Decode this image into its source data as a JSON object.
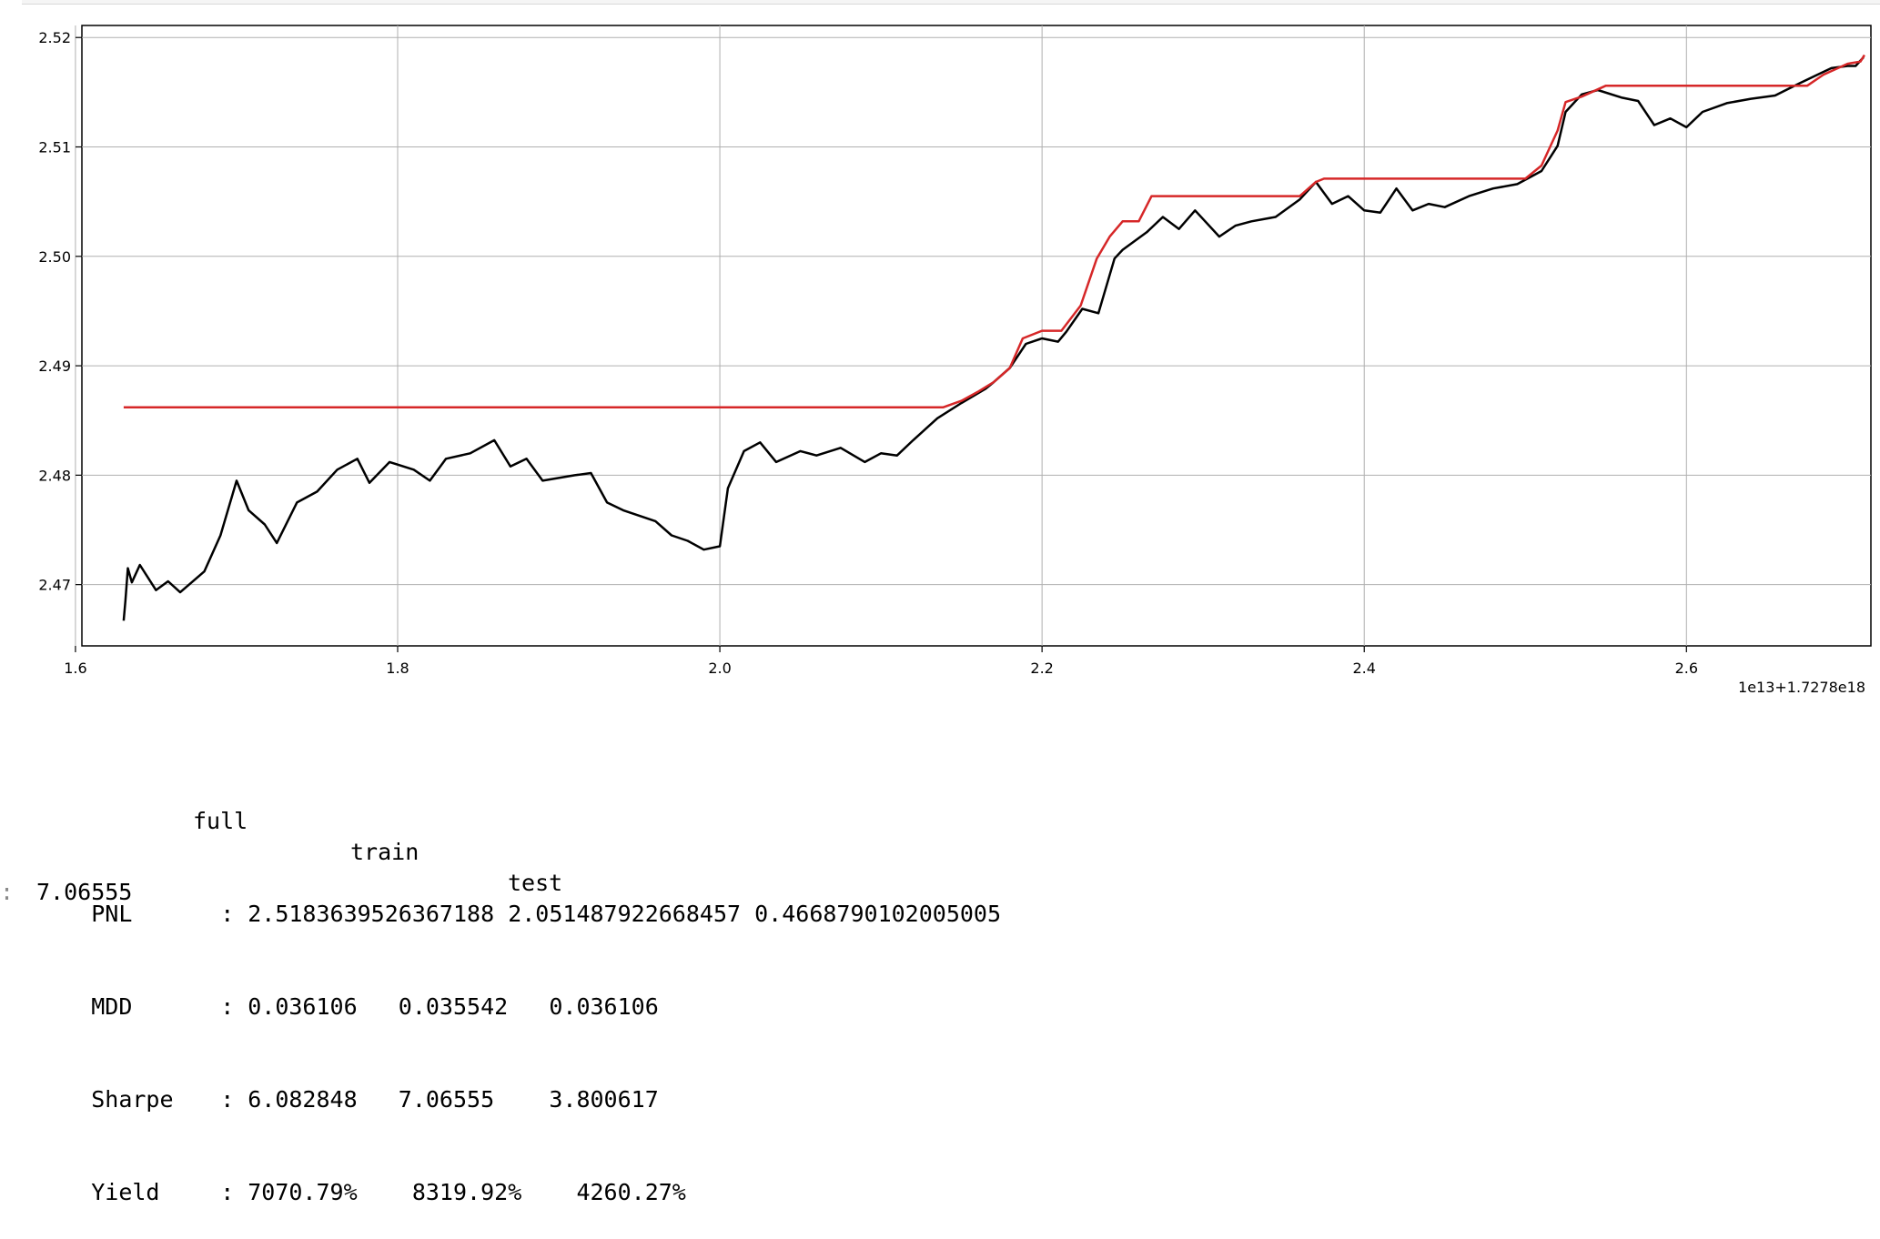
{
  "chart_data": {
    "type": "line",
    "xlim": [
      1.604,
      2.7145
    ],
    "ylim": [
      2.4644,
      2.5211
    ],
    "x_ticks": [
      1.6,
      1.8,
      2.0,
      2.2,
      2.4,
      2.6
    ],
    "x_tick_labels": [
      "1.6",
      "1.8",
      "2.0",
      "2.2",
      "2.4",
      "2.6"
    ],
    "y_ticks": [
      2.47,
      2.48,
      2.49,
      2.5,
      2.51,
      2.52
    ],
    "y_tick_labels": [
      "2.47",
      "2.48",
      "2.49",
      "2.50",
      "2.51",
      "2.52"
    ],
    "offset_label": "1e13+1.7278e18",
    "grid": true,
    "series": [
      {
        "color": "#000000",
        "x": [
          1.6299,
          1.631,
          1.6325,
          1.635,
          1.64,
          1.65,
          1.6575,
          1.665,
          1.68,
          1.69,
          1.7,
          1.7075,
          1.7175,
          1.725,
          1.7375,
          1.75,
          1.7625,
          1.775,
          1.7825,
          1.795,
          1.81,
          1.82,
          1.83,
          1.845,
          1.86,
          1.87,
          1.88,
          1.89,
          1.91,
          1.92,
          1.93,
          1.94,
          1.96,
          1.97,
          1.98,
          1.99,
          2.0,
          2.005,
          2.015,
          2.025,
          2.035,
          2.05,
          2.06,
          2.075,
          2.09,
          2.1,
          2.11,
          2.12,
          2.135,
          2.15,
          2.165,
          2.17,
          2.18,
          2.19,
          2.2,
          2.21,
          2.215,
          2.225,
          2.235,
          2.245,
          2.25,
          2.265,
          2.275,
          2.285,
          2.295,
          2.31,
          2.32,
          2.33,
          2.345,
          2.36,
          2.37,
          2.38,
          2.39,
          2.4,
          2.41,
          2.42,
          2.43,
          2.44,
          2.45,
          2.465,
          2.48,
          2.495,
          2.51,
          2.52,
          2.525,
          2.535,
          2.545,
          2.56,
          2.57,
          2.58,
          2.59,
          2.6,
          2.61,
          2.625,
          2.64,
          2.655,
          2.67,
          2.68,
          2.69,
          2.7,
          2.705,
          2.71
        ],
        "values": [
          2.4667,
          2.4685,
          2.4715,
          2.4702,
          2.4718,
          2.4695,
          2.4703,
          2.4693,
          2.4712,
          2.4745,
          2.4795,
          2.4768,
          2.4755,
          2.4738,
          2.4775,
          2.4785,
          2.4805,
          2.4815,
          2.4793,
          2.4812,
          2.4805,
          2.4795,
          2.4815,
          2.482,
          2.4832,
          2.4808,
          2.4815,
          2.4795,
          2.48,
          2.4802,
          2.4775,
          2.4768,
          2.4758,
          2.4745,
          2.474,
          2.4732,
          2.4735,
          2.4788,
          2.4822,
          2.483,
          2.4812,
          2.4822,
          2.4818,
          2.4825,
          2.4812,
          2.482,
          2.4818,
          2.4832,
          2.4852,
          2.4866,
          2.4879,
          2.4885,
          2.4898,
          2.492,
          2.4925,
          2.4922,
          2.4931,
          2.4952,
          2.4948,
          2.4998,
          2.5006,
          2.5022,
          2.5036,
          2.5025,
          2.5042,
          2.5018,
          2.5028,
          2.5032,
          2.5036,
          2.5052,
          2.5068,
          2.5048,
          2.5055,
          2.5042,
          2.504,
          2.5062,
          2.5042,
          2.5048,
          2.5045,
          2.5055,
          2.5062,
          2.5066,
          2.5078,
          2.5101,
          2.5132,
          2.5148,
          2.5152,
          2.5145,
          2.5142,
          2.512,
          2.5126,
          2.5118,
          2.5132,
          2.514,
          2.5144,
          2.5147,
          2.5158,
          2.5165,
          2.5172,
          2.5174,
          2.5174,
          2.5182
        ]
      },
      {
        "color": "#d62728",
        "x": [
          1.6299,
          2.1385,
          2.15,
          2.16,
          2.17,
          2.18,
          2.188,
          2.2,
          2.212,
          2.224,
          2.234,
          2.242,
          2.25,
          2.26,
          2.268,
          2.36,
          2.37,
          2.375,
          2.5,
          2.51,
          2.52,
          2.525,
          2.535,
          2.55,
          2.675,
          2.685,
          2.7,
          2.708,
          2.7105
        ],
        "values": [
          2.4862,
          2.4862,
          2.4868,
          2.4876,
          2.4885,
          2.4898,
          2.4925,
          2.4932,
          2.4932,
          2.4955,
          2.4998,
          2.5018,
          2.5032,
          2.5032,
          2.5055,
          2.5055,
          2.5068,
          2.5071,
          2.5071,
          2.5083,
          2.5115,
          2.5141,
          2.5146,
          2.5156,
          2.5156,
          2.5166,
          2.5176,
          2.5178,
          2.5184
        ]
      }
    ]
  },
  "stats": {
    "headers": [
      "full",
      "train",
      "test"
    ],
    "rows": [
      {
        "name": "PNL",
        "sep": ":",
        "values": "2.5183639526367188 2.051487922668457 0.4668790102005005"
      },
      {
        "name": "MDD",
        "sep": ":",
        "values": "0.036106   0.035542   0.036106"
      },
      {
        "name": "Sharpe",
        "sep": ":",
        "values": "6.082848   7.06555    3.800617"
      },
      {
        "name": "Yield",
        "sep": ":",
        "values": "7070.79%    8319.92%    4260.27%"
      }
    ]
  },
  "output": {
    "prompt": ":",
    "result": "7.06555"
  }
}
